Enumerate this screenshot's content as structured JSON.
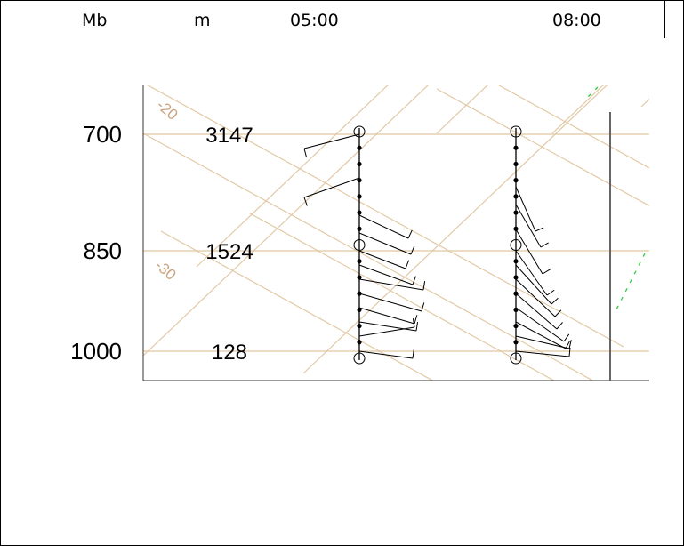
{
  "header": {
    "col_pressure": "Mb",
    "col_height": "m",
    "times": [
      "05:00",
      "08:00"
    ]
  },
  "chart_data": {
    "type": "wind-profile",
    "pressure_levels": [
      {
        "mb": "700",
        "height_m": "3147"
      },
      {
        "mb": "850",
        "height_m": "1524"
      },
      {
        "mb": "1000",
        "height_m": "128"
      }
    ],
    "isotherm_labels": [
      "-20",
      "-30"
    ],
    "profiles": [
      {
        "time": "05:00",
        "levels": 15,
        "circled_levels": [
          0,
          7,
          14
        ]
      },
      {
        "time": "08:00",
        "levels": 15,
        "circled_levels": [
          0,
          7,
          14
        ]
      }
    ],
    "colors": {
      "grid": "#ecdcc6",
      "isotherm": "#e2c9a6",
      "isotherm_label": "#c9a27e",
      "barb": "#000000",
      "dashed_accent": "#2ecc40"
    }
  }
}
